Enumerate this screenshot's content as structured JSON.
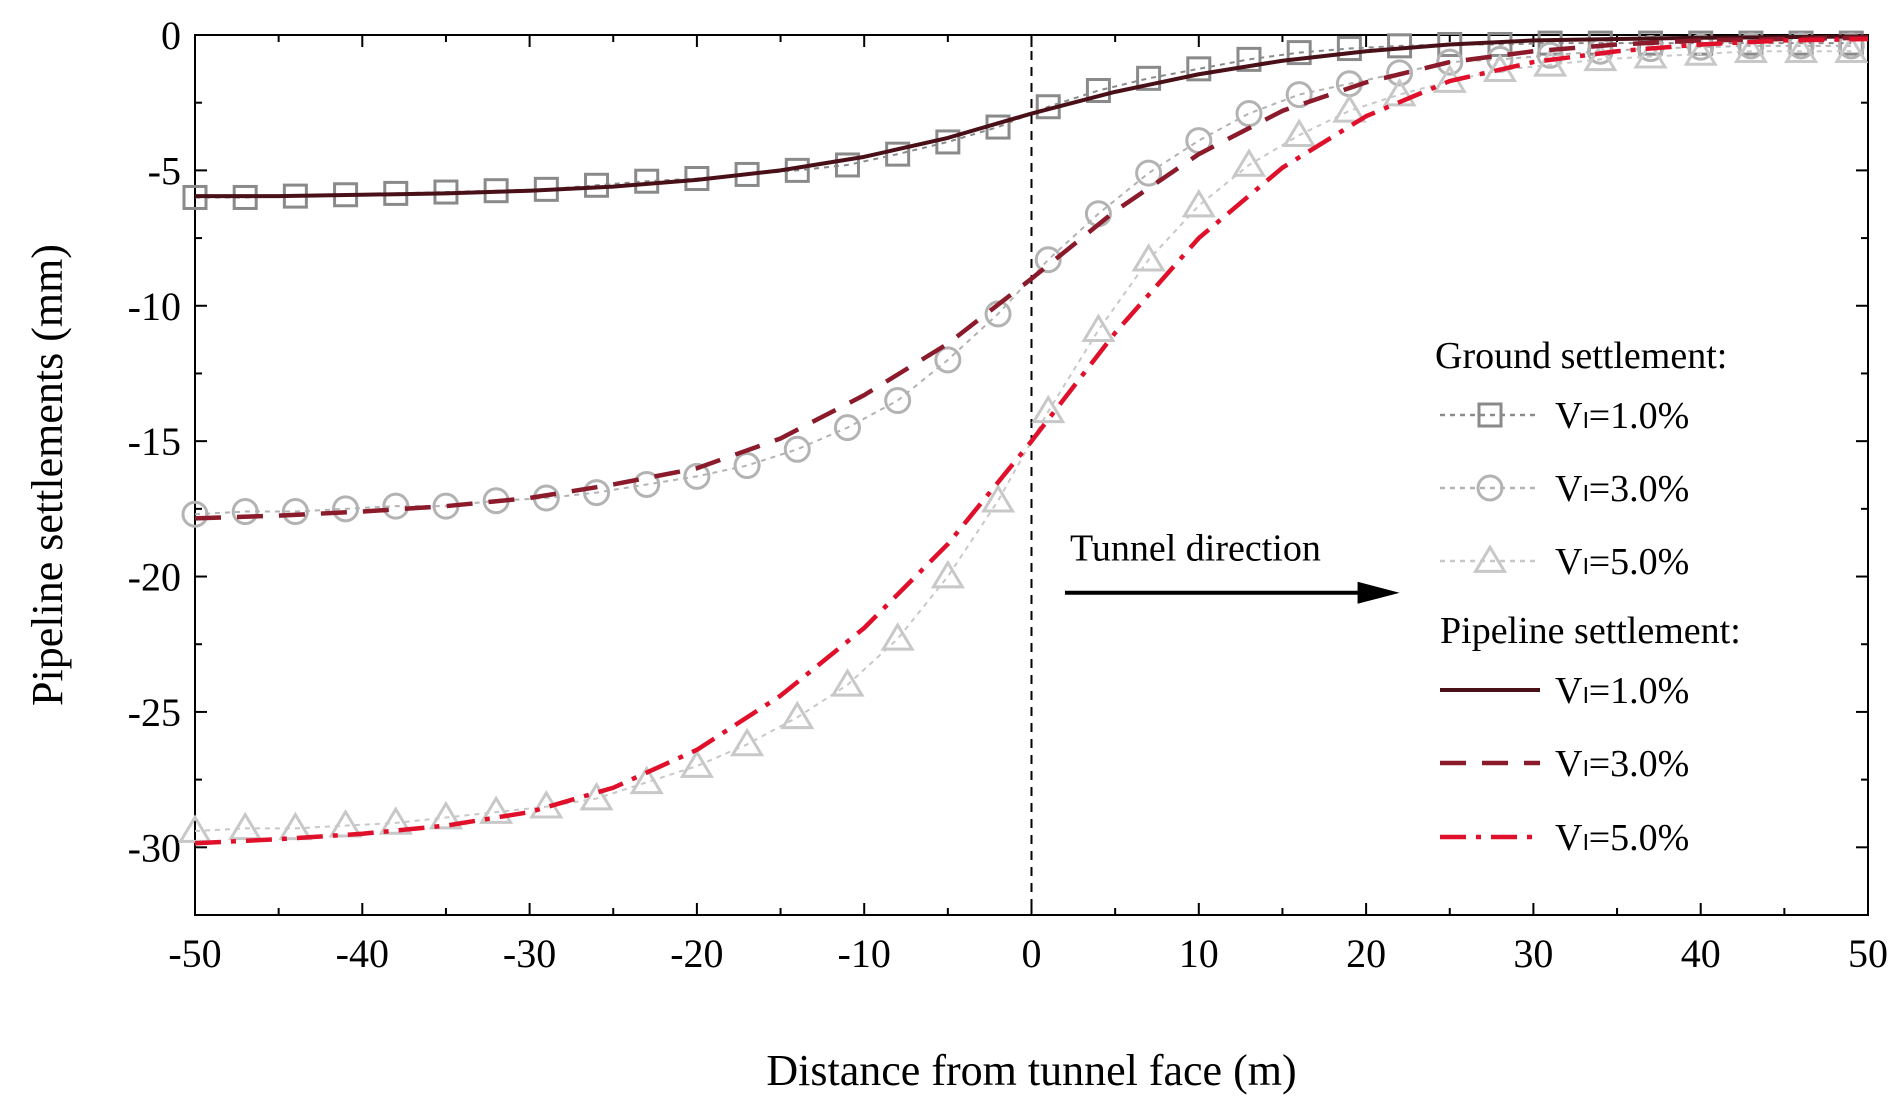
{
  "chart_data": {
    "type": "line",
    "title": "",
    "xlabel": "Distance from tunnel face (m)",
    "ylabel": "Pipeline settlements (mm)",
    "xlim": [
      -50,
      50
    ],
    "ylim": [
      -32.5,
      0
    ],
    "x_ticks": [
      -50,
      -40,
      -30,
      -20,
      -10,
      0,
      10,
      20,
      30,
      40,
      50
    ],
    "y_ticks": [
      0,
      -5,
      -10,
      -15,
      -20,
      -25,
      -30
    ],
    "x_tick_labels": [
      "-50",
      "-40",
      "-30",
      "-20",
      "-10",
      "0",
      "10",
      "20",
      "30",
      "40",
      "50"
    ],
    "y_tick_labels": [
      "0",
      "-5",
      "-10",
      "-15",
      "-20",
      "-25",
      "-30"
    ],
    "grid": false,
    "legend_position": "right",
    "legend": {
      "ground_heading": "Ground settlement:",
      "pipeline_heading": "Pipeline settlement:"
    },
    "annotation": {
      "text": "Tunnel direction",
      "arrow": "right",
      "x_start": 2,
      "x_end": 22,
      "y": -20.6,
      "text_y": -19.4
    },
    "tunnel_face_x": 0,
    "series": [
      {
        "group": "ground",
        "name": "Vₗ=1.0%",
        "marker": "square",
        "color": "#8a8a8a",
        "dash": "dotted",
        "x": [
          -50,
          -47,
          -44,
          -41,
          -38,
          -35,
          -32,
          -29,
          -26,
          -23,
          -20,
          -17,
          -14,
          -11,
          -8,
          -5,
          -2,
          1,
          4,
          7,
          10,
          13,
          16,
          19,
          22,
          25,
          28,
          31,
          34,
          37,
          40,
          43,
          46,
          49
        ],
        "y": [
          -6.0,
          -6.0,
          -5.95,
          -5.9,
          -5.85,
          -5.8,
          -5.75,
          -5.7,
          -5.55,
          -5.4,
          -5.3,
          -5.15,
          -5.0,
          -4.8,
          -4.4,
          -3.95,
          -3.4,
          -2.65,
          -2.05,
          -1.6,
          -1.25,
          -0.9,
          -0.65,
          -0.5,
          -0.4,
          -0.35,
          -0.35,
          -0.3,
          -0.3,
          -0.3,
          -0.3,
          -0.3,
          -0.3,
          -0.3
        ]
      },
      {
        "group": "ground",
        "name": "Vₗ=3.0%",
        "marker": "circle",
        "color": "#b3b3b3",
        "dash": "dotted",
        "x": [
          -50,
          -47,
          -44,
          -41,
          -38,
          -35,
          -32,
          -29,
          -26,
          -23,
          -20,
          -17,
          -14,
          -11,
          -8,
          -5,
          -2,
          1,
          4,
          7,
          10,
          13,
          16,
          19,
          22,
          25,
          28,
          31,
          34,
          37,
          40,
          43,
          46,
          49
        ],
        "y": [
          -17.7,
          -17.6,
          -17.6,
          -17.5,
          -17.4,
          -17.4,
          -17.2,
          -17.1,
          -16.9,
          -16.6,
          -16.3,
          -15.9,
          -15.3,
          -14.5,
          -13.5,
          -12.0,
          -10.3,
          -8.3,
          -6.6,
          -5.1,
          -3.9,
          -2.9,
          -2.2,
          -1.8,
          -1.4,
          -1.0,
          -0.9,
          -0.75,
          -0.6,
          -0.5,
          -0.45,
          -0.4,
          -0.4,
          -0.4
        ]
      },
      {
        "group": "ground",
        "name": "Vₗ=5.0%",
        "marker": "triangle",
        "color": "#c8c8c8",
        "dash": "dotted",
        "x": [
          -50,
          -47,
          -44,
          -41,
          -38,
          -35,
          -32,
          -29,
          -26,
          -23,
          -20,
          -17,
          -14,
          -11,
          -8,
          -5,
          -2,
          1,
          4,
          7,
          10,
          13,
          16,
          19,
          22,
          25,
          28,
          31,
          34,
          37,
          40,
          43,
          46,
          49
        ],
        "y": [
          -29.4,
          -29.3,
          -29.3,
          -29.2,
          -29.1,
          -28.9,
          -28.7,
          -28.5,
          -28.2,
          -27.6,
          -27.0,
          -26.2,
          -25.2,
          -24.0,
          -22.3,
          -20.0,
          -17.2,
          -13.9,
          -10.9,
          -8.3,
          -6.3,
          -4.8,
          -3.7,
          -2.8,
          -2.2,
          -1.7,
          -1.3,
          -1.1,
          -0.9,
          -0.8,
          -0.7,
          -0.6,
          -0.6,
          -0.6
        ]
      },
      {
        "group": "pipeline",
        "name": "Vₗ=1.0%",
        "marker": "none",
        "color": "#4a1018",
        "dash": "solid",
        "x": [
          -50,
          -45,
          -40,
          -35,
          -30,
          -25,
          -20,
          -15,
          -10,
          -5,
          0,
          5,
          10,
          15,
          20,
          25,
          30,
          35,
          40,
          45,
          50
        ],
        "y": [
          -5.95,
          -5.95,
          -5.9,
          -5.85,
          -5.75,
          -5.6,
          -5.35,
          -5.0,
          -4.5,
          -3.8,
          -2.9,
          -2.1,
          -1.45,
          -0.95,
          -0.6,
          -0.35,
          -0.2,
          -0.15,
          -0.1,
          -0.08,
          -0.05
        ]
      },
      {
        "group": "pipeline",
        "name": "Vₗ=3.0%",
        "marker": "none",
        "color": "#8b1a2b",
        "dash": "dashed",
        "x": [
          -50,
          -45,
          -40,
          -35,
          -30,
          -25,
          -20,
          -15,
          -10,
          -5,
          0,
          5,
          10,
          15,
          20,
          25,
          30,
          35,
          40,
          45,
          50
        ],
        "y": [
          -17.85,
          -17.75,
          -17.6,
          -17.4,
          -17.1,
          -16.6,
          -16.0,
          -14.9,
          -13.3,
          -11.4,
          -9.0,
          -6.5,
          -4.4,
          -2.8,
          -1.75,
          -1.0,
          -0.6,
          -0.35,
          -0.2,
          -0.15,
          -0.1
        ]
      },
      {
        "group": "pipeline",
        "name": "Vₗ=5.0%",
        "marker": "none",
        "color": "#e0102a",
        "dash": "dashdot",
        "x": [
          -50,
          -45,
          -40,
          -35,
          -30,
          -25,
          -20,
          -15,
          -10,
          -5,
          0,
          5,
          10,
          15,
          20,
          25,
          30,
          35,
          40,
          45,
          50
        ],
        "y": [
          -29.85,
          -29.7,
          -29.5,
          -29.2,
          -28.7,
          -27.8,
          -26.4,
          -24.4,
          -21.9,
          -18.8,
          -15.0,
          -11.0,
          -7.5,
          -4.9,
          -3.0,
          -1.7,
          -1.0,
          -0.6,
          -0.35,
          -0.2,
          -0.15
        ]
      }
    ]
  }
}
